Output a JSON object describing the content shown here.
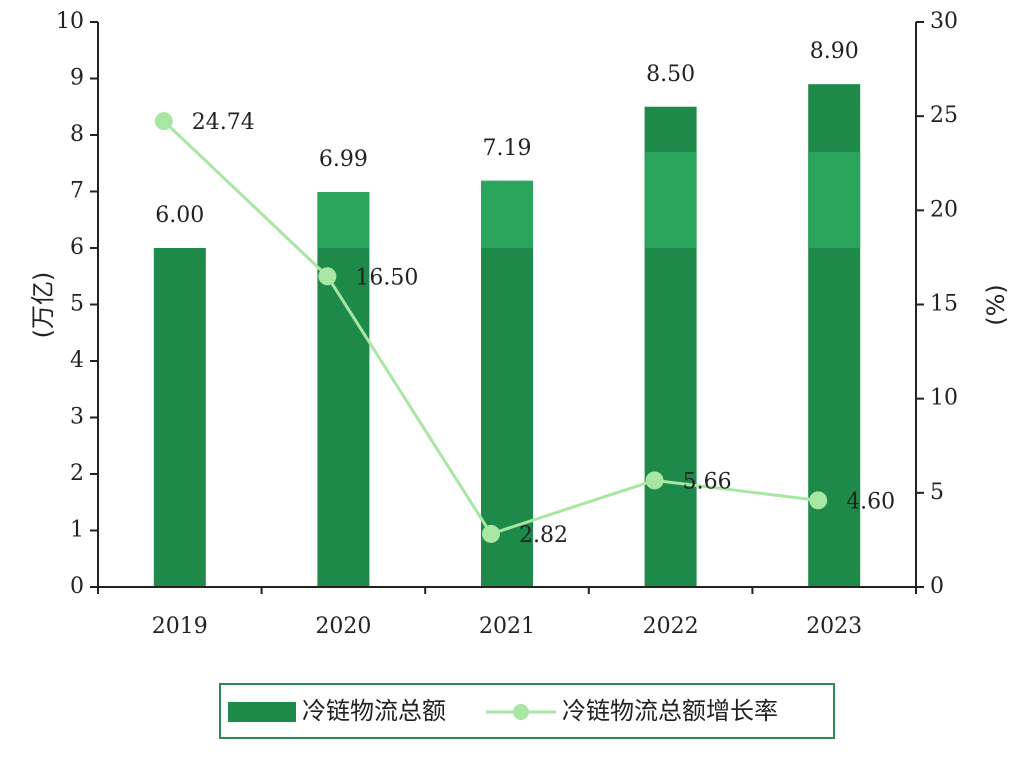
{
  "chart_data": {
    "type": "bar",
    "categories": [
      "2019",
      "2020",
      "2021",
      "2022",
      "2023"
    ],
    "series": [
      {
        "name": "冷链物流总额",
        "type": "bar",
        "axis": "left",
        "values": [
          6.0,
          6.99,
          7.19,
          8.5,
          8.9
        ],
        "labels": [
          "6.00",
          "6.99",
          "7.19",
          "8.50",
          "8.90"
        ],
        "color": "#1e8a4a"
      },
      {
        "name": "冷链物流总额增长率",
        "type": "line",
        "axis": "right",
        "values": [
          24.74,
          16.5,
          2.82,
          5.66,
          4.6
        ],
        "labels": [
          "24.74",
          "16.50",
          "2.82",
          "5.66",
          "4.60"
        ],
        "color": "#a8e6a3"
      }
    ],
    "ylabel_left": "(万亿)",
    "ylabel_right": "(%)",
    "ylim_left": [
      0,
      10
    ],
    "ylim_right": [
      0,
      30
    ],
    "yticks_left": [
      "0",
      "1",
      "2",
      "3",
      "4",
      "5",
      "6",
      "7",
      "8",
      "9",
      "10"
    ],
    "yticks_right": [
      "0",
      "5",
      "10",
      "15",
      "20",
      "25",
      "30"
    ],
    "grid": false,
    "legend": "bottom-center",
    "colors": {
      "bar": "#1e8a4a",
      "bar_band": "#2ea85f",
      "line": "#a8e6a3",
      "axis": "#222222",
      "legend_border": "#2f8a4f"
    }
  }
}
